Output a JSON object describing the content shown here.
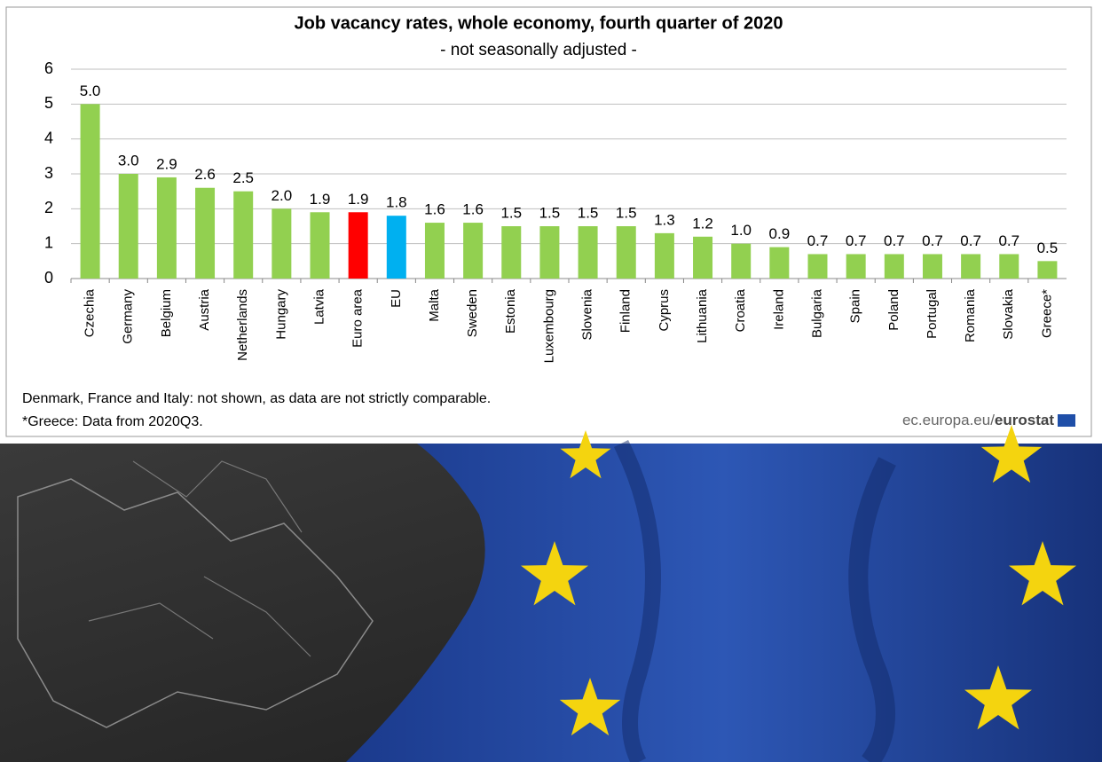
{
  "chart_data": {
    "type": "bar",
    "title": "Job vacancy rates, whole economy, fourth quarter of 2020",
    "subtitle": "- not seasonally adjusted -",
    "categories": [
      "Czechia",
      "Germany",
      "Belgium",
      "Austria",
      "Netherlands",
      "Hungary",
      "Latvia",
      "Euro area",
      "EU",
      "Malta",
      "Sweden",
      "Estonia",
      "Luxembourg",
      "Slovenia",
      "Finland",
      "Cyprus",
      "Lithuania",
      "Croatia",
      "Ireland",
      "Bulgaria",
      "Spain",
      "Poland",
      "Portugal",
      "Romania",
      "Slovakia",
      "Greece*"
    ],
    "values": [
      5.0,
      3.0,
      2.9,
      2.6,
      2.5,
      2.0,
      1.9,
      1.9,
      1.8,
      1.6,
      1.6,
      1.5,
      1.5,
      1.5,
      1.5,
      1.3,
      1.2,
      1.0,
      0.9,
      0.7,
      0.7,
      0.7,
      0.7,
      0.7,
      0.7,
      0.5
    ],
    "value_labels": [
      "5.0",
      "3.0",
      "2.9",
      "2.6",
      "2.5",
      "2.0",
      "1.9",
      "1.9",
      "1.8",
      "1.6",
      "1.6",
      "1.5",
      "1.5",
      "1.5",
      "1.5",
      "1.3",
      "1.2",
      "1.0",
      "0.9",
      "0.7",
      "0.7",
      "0.7",
      "0.7",
      "0.7",
      "0.7",
      "0.5"
    ],
    "colors": [
      "#92d050",
      "#92d050",
      "#92d050",
      "#92d050",
      "#92d050",
      "#92d050",
      "#92d050",
      "#ff0000",
      "#00b0f0",
      "#92d050",
      "#92d050",
      "#92d050",
      "#92d050",
      "#92d050",
      "#92d050",
      "#92d050",
      "#92d050",
      "#92d050",
      "#92d050",
      "#92d050",
      "#92d050",
      "#92d050",
      "#92d050",
      "#92d050",
      "#92d050",
      "#92d050"
    ],
    "ylim": [
      0,
      6
    ],
    "yticks": [
      0,
      1,
      2,
      3,
      4,
      5,
      6
    ],
    "grid": true,
    "notes": [
      "Denmark, France and Italy: not shown, as data are not strictly comparable.",
      "*Greece: Data from 2020Q3."
    ],
    "source": [
      "ec.europa.eu/",
      "eurostat"
    ]
  }
}
